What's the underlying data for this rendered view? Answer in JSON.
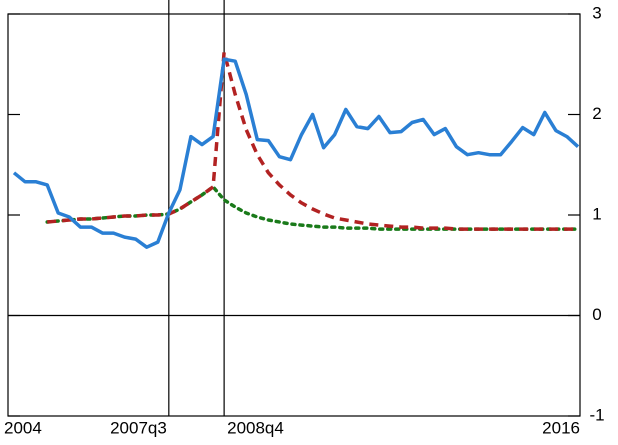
{
  "chart_data": {
    "type": "line",
    "categories": [
      "2004",
      null,
      null,
      null,
      null,
      null,
      null,
      null,
      null,
      null,
      null,
      null,
      null,
      null,
      "2007q3",
      null,
      null,
      null,
      null,
      "2008q4",
      null,
      null,
      null,
      null,
      null,
      null,
      null,
      null,
      null,
      null,
      null,
      null,
      null,
      null,
      null,
      null,
      null,
      null,
      null,
      null,
      null,
      null,
      null,
      null,
      null,
      null,
      null,
      null,
      null,
      null,
      null,
      "2016"
    ],
    "series": [
      {
        "color": "#2a7fd4",
        "style": "solid",
        "values": [
          1.42,
          1.33,
          1.33,
          1.3,
          1.02,
          0.98,
          0.88,
          0.88,
          0.82,
          0.82,
          0.78,
          0.76,
          0.68,
          0.73,
          1.02,
          1.25,
          1.78,
          1.7,
          1.78,
          2.55,
          2.53,
          2.2,
          1.75,
          1.74,
          1.58,
          1.55,
          1.8,
          2.0,
          1.67,
          1.8,
          2.05,
          1.88,
          1.86,
          1.98,
          1.82,
          1.83,
          1.92,
          1.95,
          1.8,
          1.86,
          1.68,
          1.6,
          1.62,
          1.6,
          1.6,
          1.73,
          1.87,
          1.8,
          2.02,
          1.84,
          1.78,
          1.68
        ]
      },
      {
        "color": "#b22222",
        "style": "dashed",
        "values": [
          null,
          null,
          null,
          0.93,
          0.94,
          0.95,
          0.96,
          0.96,
          0.97,
          0.98,
          0.99,
          0.99,
          1.0,
          1.0,
          1.01,
          1.06,
          1.13,
          1.2,
          1.28,
          2.62,
          2.2,
          1.85,
          1.6,
          1.42,
          1.3,
          1.2,
          1.12,
          1.06,
          1.01,
          0.97,
          0.95,
          0.93,
          0.91,
          0.9,
          0.89,
          0.88,
          0.88,
          0.87,
          0.87,
          0.87,
          0.86,
          0.86,
          0.86,
          0.86,
          0.86,
          0.86,
          0.86,
          0.86,
          0.86,
          0.86,
          0.86,
          0.86
        ]
      },
      {
        "color": "#1a7a1a",
        "style": "dotted",
        "values": [
          null,
          null,
          null,
          0.93,
          0.94,
          0.95,
          0.96,
          0.96,
          0.97,
          0.98,
          0.99,
          0.99,
          1.0,
          1.0,
          1.01,
          1.06,
          1.13,
          1.2,
          1.28,
          1.15,
          1.08,
          1.02,
          0.98,
          0.95,
          0.93,
          0.91,
          0.9,
          0.89,
          0.88,
          0.88,
          0.87,
          0.87,
          0.87,
          0.86,
          0.86,
          0.86,
          0.86,
          0.86,
          0.86,
          0.86,
          0.86,
          0.86,
          0.86,
          0.86,
          0.86,
          0.86,
          0.86,
          0.86,
          0.86,
          0.86,
          0.86,
          0.86
        ]
      }
    ],
    "ylim": [
      -1,
      3
    ],
    "yticks": [
      -1,
      0,
      1,
      2,
      3
    ],
    "y_axis_side": "right"
  }
}
